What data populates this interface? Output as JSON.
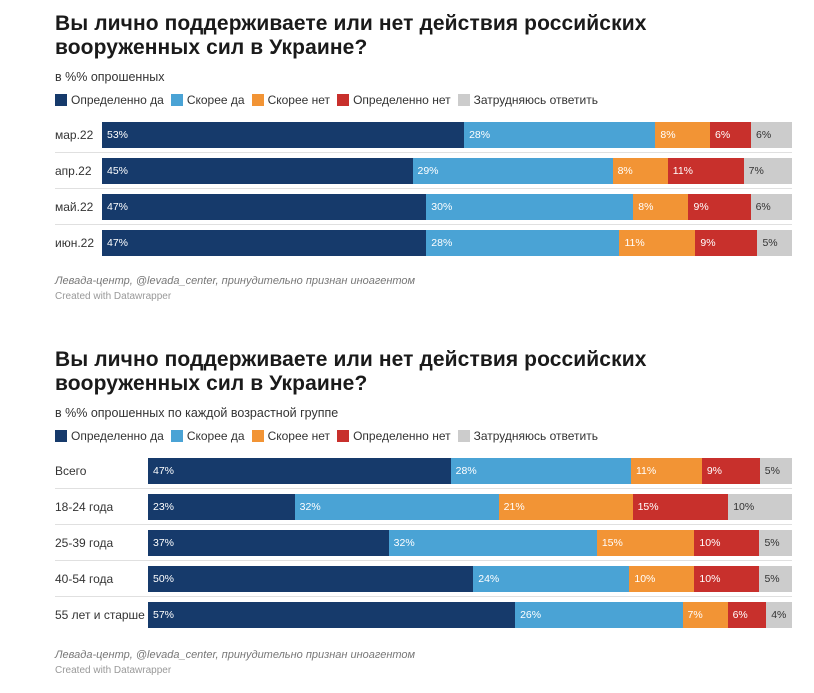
{
  "colors": {
    "definitely_yes": "#163a6b",
    "rather_yes": "#4aa3d5",
    "rather_no": "#f29435",
    "definitely_no": "#c8302c",
    "hard_to_say": "#cccccc"
  },
  "chart_data": [
    {
      "type": "stacked-bar-horizontal",
      "title": "Вы лично поддерживаете или нет действия российских вооруженных сил в Украине?",
      "subtitle": "в %% опрошенных",
      "legend": [
        "Определенно да",
        "Скорее да",
        "Скорее нет",
        "Определенно нет",
        "Затрудняюсь ответить"
      ],
      "categories": [
        "мар.22",
        "апр.22",
        "май.22",
        "июн.22"
      ],
      "series": [
        {
          "name": "Определенно да",
          "values": [
            53,
            45,
            47,
            47
          ]
        },
        {
          "name": "Скорее да",
          "values": [
            28,
            29,
            30,
            28
          ]
        },
        {
          "name": "Скорее нет",
          "values": [
            8,
            8,
            8,
            11
          ]
        },
        {
          "name": "Определенно нет",
          "values": [
            6,
            11,
            9,
            9
          ]
        },
        {
          "name": "Затрудняюсь ответить",
          "values": [
            6,
            7,
            6,
            5
          ]
        }
      ],
      "value_suffix": "%",
      "source": "Левада-центр, @levada_center, принудительно признан иноагентом",
      "credit": "Created with Datawrapper"
    },
    {
      "type": "stacked-bar-horizontal",
      "title": "Вы лично поддерживаете или нет действия российских вооруженных сил в Украине?",
      "subtitle": "в %% опрошенных по каждой возрастной группе",
      "legend": [
        "Определенно да",
        "Скорее да",
        "Скорее нет",
        "Определенно нет",
        "Затрудняюсь ответить"
      ],
      "categories": [
        "Всего",
        "18-24 года",
        "25-39 года",
        "40-54 года",
        "55 лет и старше"
      ],
      "series": [
        {
          "name": "Определенно да",
          "values": [
            47,
            23,
            37,
            50,
            57
          ]
        },
        {
          "name": "Скорее да",
          "values": [
            28,
            32,
            32,
            24,
            26
          ]
        },
        {
          "name": "Скорее нет",
          "values": [
            11,
            21,
            15,
            10,
            7
          ]
        },
        {
          "name": "Определенно нет",
          "values": [
            9,
            15,
            10,
            10,
            6
          ]
        },
        {
          "name": "Затрудняюсь ответить",
          "values": [
            5,
            10,
            5,
            5,
            4
          ]
        }
      ],
      "value_suffix": "%",
      "source": "Левада-центр, @levada_center, принудительно признан иноагентом",
      "credit": "Created with Datawrapper"
    }
  ]
}
